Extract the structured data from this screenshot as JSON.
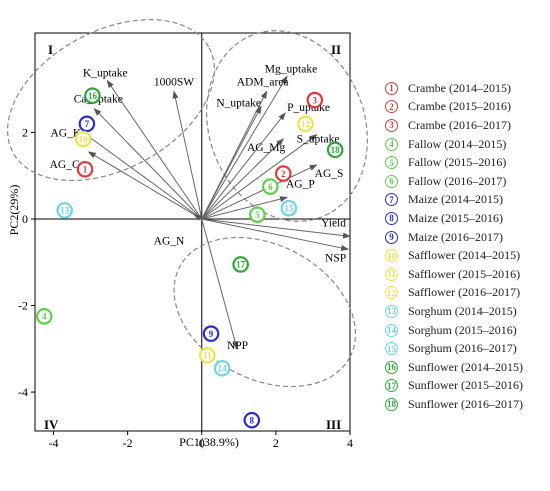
{
  "chart_data": {
    "type": "scatter",
    "subtype": "pca-biplot",
    "title": "",
    "xlabel": "PC1(38.9%)",
    "ylabel": "PC2(29%)",
    "xlim": [
      -4.5,
      4
    ],
    "ylim": [
      -4.9,
      4.3
    ],
    "xticks": [
      -4,
      -2,
      0,
      2,
      4
    ],
    "yticks": [
      -4,
      -2,
      0,
      2
    ],
    "quadrants": [
      "I",
      "II",
      "III",
      "IV"
    ],
    "groups": [
      {
        "id": 1,
        "name": "Crambe (2014–2015)",
        "color": "#e03c3c",
        "x": -3.15,
        "y": 1.15
      },
      {
        "id": 2,
        "name": "Crambe (2015–2016)",
        "color": "#e03c3c",
        "x": 2.2,
        "y": 1.05
      },
      {
        "id": 3,
        "name": "Crambe (2016–2017)",
        "color": "#e03c3c",
        "x": 3.05,
        "y": 2.75
      },
      {
        "id": 4,
        "name": "Fallow (2014–2015)",
        "color": "#5fcf49",
        "x": -4.25,
        "y": -2.25
      },
      {
        "id": 5,
        "name": "Fallow (2015–2016)",
        "color": "#5fcf49",
        "x": 1.5,
        "y": 0.1
      },
      {
        "id": 6,
        "name": "Fallow (2016–2017)",
        "color": "#5fcf49",
        "x": 1.85,
        "y": 0.75
      },
      {
        "id": 7,
        "name": "Maize (2014–2015)",
        "color": "#2a2fc4",
        "x": -3.1,
        "y": 2.2
      },
      {
        "id": 8,
        "name": "Maize (2015–2016)",
        "color": "#2a2fc4",
        "x": 1.35,
        "y": -4.65
      },
      {
        "id": 9,
        "name": "Maize (2016–2017)",
        "color": "#2a2fc4",
        "x": 0.25,
        "y": -2.65
      },
      {
        "id": 10,
        "name": "Safflower (2014–2015)",
        "color": "#f1e24c",
        "x": -3.2,
        "y": 1.85
      },
      {
        "id": 11,
        "name": "Safflower (2015–2016)",
        "color": "#f1e24c",
        "x": 0.15,
        "y": -3.15
      },
      {
        "id": 12,
        "name": "Safflower (2016–2017)",
        "color": "#f1e24c",
        "x": 2.8,
        "y": 2.2
      },
      {
        "id": 13,
        "name": "Sorghum (2014–2015)",
        "color": "#6ad7e4",
        "x": -3.7,
        "y": 0.2
      },
      {
        "id": 14,
        "name": "Sorghum (2015–2016)",
        "color": "#6ad7e4",
        "x": 0.55,
        "y": -3.45
      },
      {
        "id": 15,
        "name": "Sorghum (2016–2017)",
        "color": "#6ad7e4",
        "x": 2.35,
        "y": 0.25
      },
      {
        "id": 16,
        "name": "Sunflower (2014–2015)",
        "color": "#2fa83a",
        "x": -2.95,
        "y": 2.85
      },
      {
        "id": 17,
        "name": "Sunflower (2015–2016)",
        "color": "#2fa83a",
        "x": 1.05,
        "y": -1.05
      },
      {
        "id": 18,
        "name": "Sunflower (2016–2017)",
        "color": "#2fa83a",
        "x": 3.6,
        "y": 1.6
      }
    ],
    "vectors": [
      {
        "name": "K_uptake",
        "x": -2.55,
        "y": 3.2
      },
      {
        "name": "1000SW",
        "x": -0.75,
        "y": 2.95
      },
      {
        "name": "Ca_uptake",
        "x": -2.9,
        "y": 2.55
      },
      {
        "name": "AG_K",
        "x": -3.2,
        "y": 2.0
      },
      {
        "name": "AG_Ca",
        "x": -3.05,
        "y": 1.55
      },
      {
        "name": "Mg_uptake",
        "x": 2.3,
        "y": 3.3
      },
      {
        "name": "ADM_area",
        "x": 1.75,
        "y": 2.95
      },
      {
        "name": "N_uptake",
        "x": 1.6,
        "y": 2.6
      },
      {
        "name": "P_uptake",
        "x": 2.25,
        "y": 2.45
      },
      {
        "name": "AG_Mg",
        "x": 2.2,
        "y": 1.85
      },
      {
        "name": "S_uptake",
        "x": 3.1,
        "y": 1.95
      },
      {
        "name": "AG_S",
        "x": 3.1,
        "y": 1.25
      },
      {
        "name": "AG_P",
        "x": 2.3,
        "y": 0.5
      },
      {
        "name": "Yield",
        "x": 4.0,
        "y": -0.4
      },
      {
        "name": "NSP",
        "x": 3.95,
        "y": -0.7
      },
      {
        "name": "AG_N",
        "x": -0.2,
        "y": 0.1
      },
      {
        "name": "NPP",
        "x": 0.95,
        "y": -3.0
      }
    ]
  }
}
